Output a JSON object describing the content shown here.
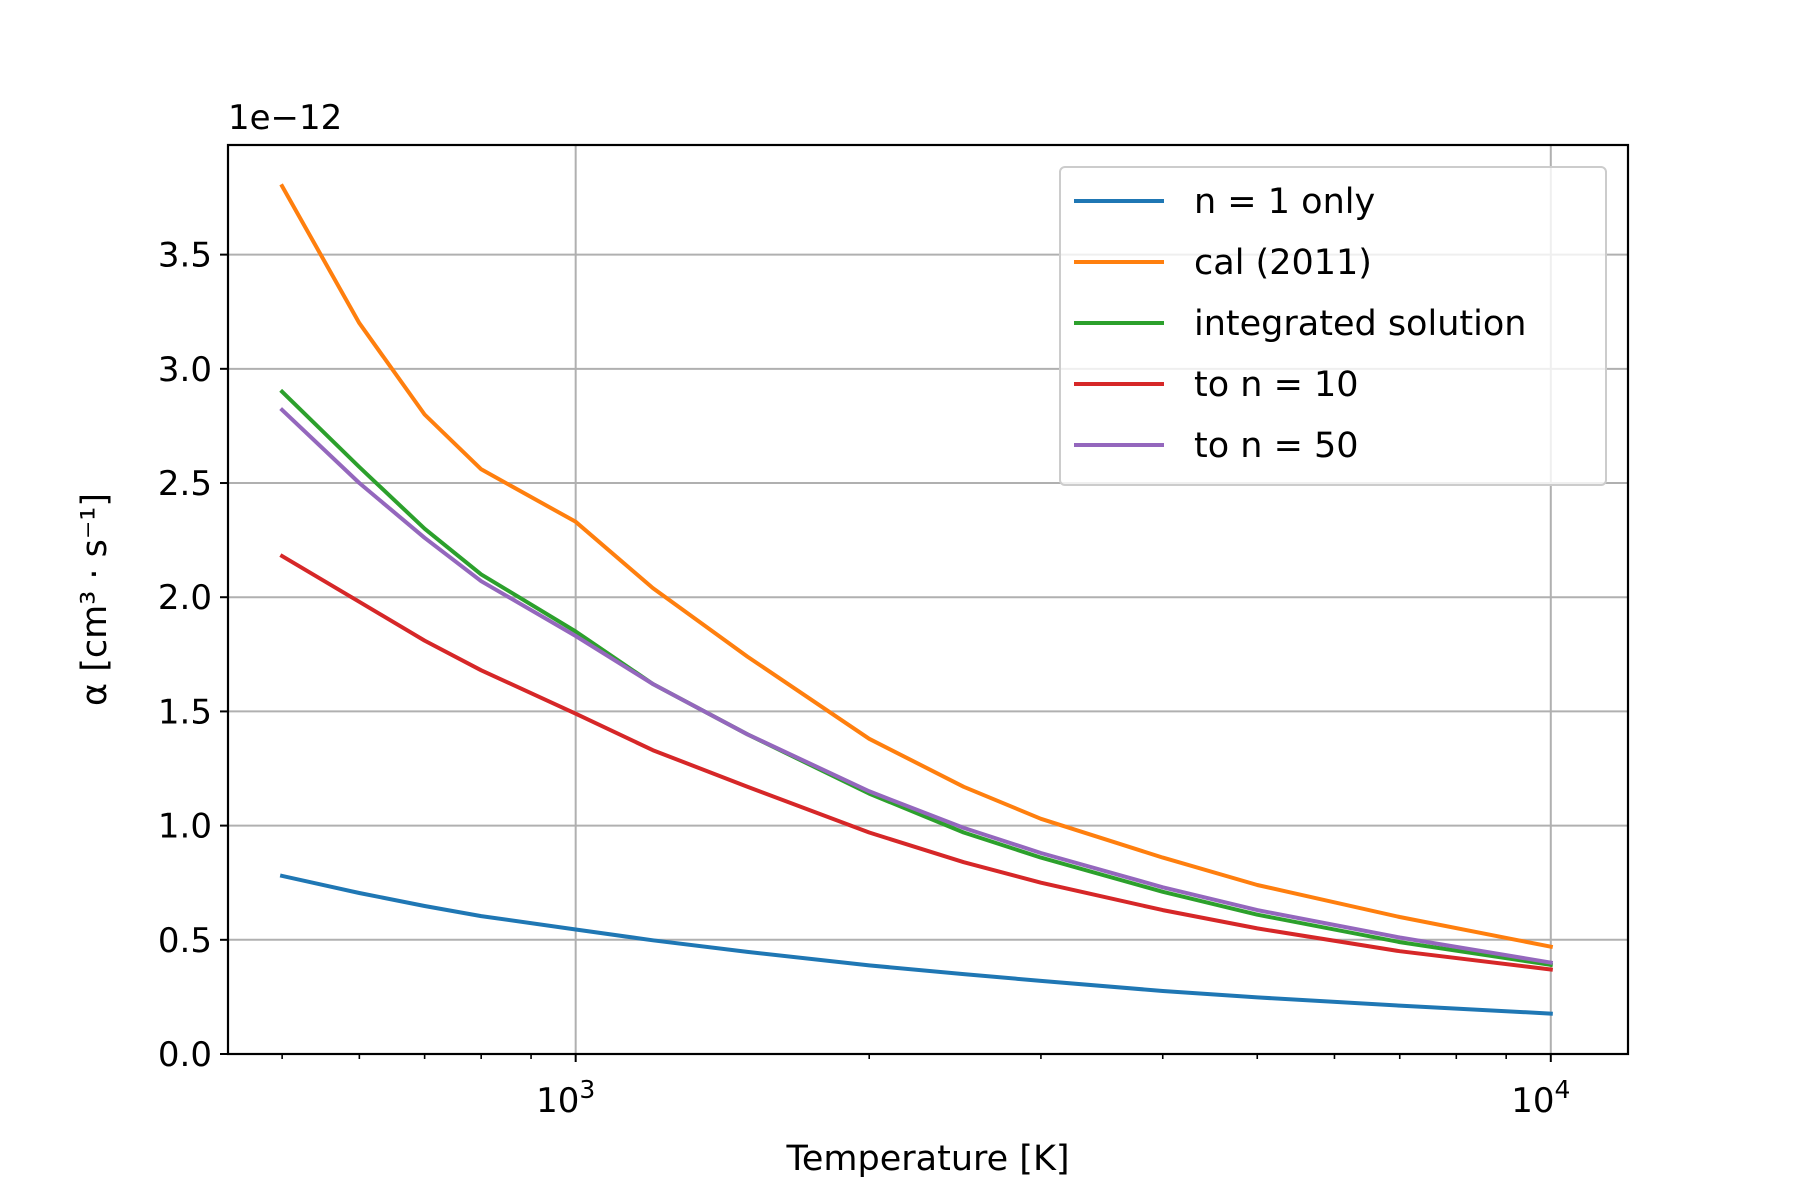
{
  "chart_data": {
    "type": "line",
    "xlabel": "Temperature [K]",
    "ylabel": "α [cm³ · s⁻¹]",
    "y_offset_text": "1e−12",
    "xscale": "log",
    "xlim": [
      440,
      12000
    ],
    "ylim": [
      0,
      3.98
    ],
    "x_major_ticks": [
      {
        "value": 1000,
        "base": "10",
        "exp": "3"
      },
      {
        "value": 10000,
        "base": "10",
        "exp": "4"
      }
    ],
    "y_ticks": [
      {
        "value": 0.0,
        "label": "0.0"
      },
      {
        "value": 0.5,
        "label": "0.5"
      },
      {
        "value": 1.0,
        "label": "1.0"
      },
      {
        "value": 1.5,
        "label": "1.5"
      },
      {
        "value": 2.0,
        "label": "2.0"
      },
      {
        "value": 2.5,
        "label": "2.5"
      },
      {
        "value": 3.0,
        "label": "3.0"
      },
      {
        "value": 3.5,
        "label": "3.5"
      }
    ],
    "grid": true,
    "legend_position": "top-right",
    "x": [
      500,
      600,
      700,
      800,
      1000,
      1200,
      1500,
      2000,
      2500,
      3000,
      4000,
      5000,
      7000,
      10000
    ],
    "series": [
      {
        "name": "n = 1 only",
        "color": "#1f77b4",
        "values": [
          0.78,
          0.705,
          0.648,
          0.604,
          0.545,
          0.498,
          0.447,
          0.388,
          0.35,
          0.32,
          0.276,
          0.248,
          0.212,
          0.177
        ]
      },
      {
        "name": "cal (2011)",
        "color": "#ff7f0e",
        "values": [
          3.8,
          3.2,
          2.8,
          2.56,
          2.33,
          2.04,
          1.74,
          1.38,
          1.17,
          1.03,
          0.86,
          0.74,
          0.6,
          0.47
        ]
      },
      {
        "name": "integrated solution",
        "color": "#2ca02c",
        "values": [
          2.9,
          2.57,
          2.3,
          2.1,
          1.85,
          1.62,
          1.4,
          1.14,
          0.97,
          0.86,
          0.71,
          0.61,
          0.49,
          0.39
        ]
      },
      {
        "name": "to n = 10",
        "color": "#d62728",
        "values": [
          2.18,
          1.98,
          1.81,
          1.68,
          1.49,
          1.33,
          1.17,
          0.97,
          0.84,
          0.75,
          0.63,
          0.55,
          0.45,
          0.37
        ]
      },
      {
        "name": "to n = 50",
        "color": "#9467bd",
        "values": [
          2.82,
          2.5,
          2.26,
          2.07,
          1.83,
          1.62,
          1.4,
          1.15,
          0.99,
          0.88,
          0.73,
          0.63,
          0.51,
          0.4
        ]
      }
    ]
  }
}
